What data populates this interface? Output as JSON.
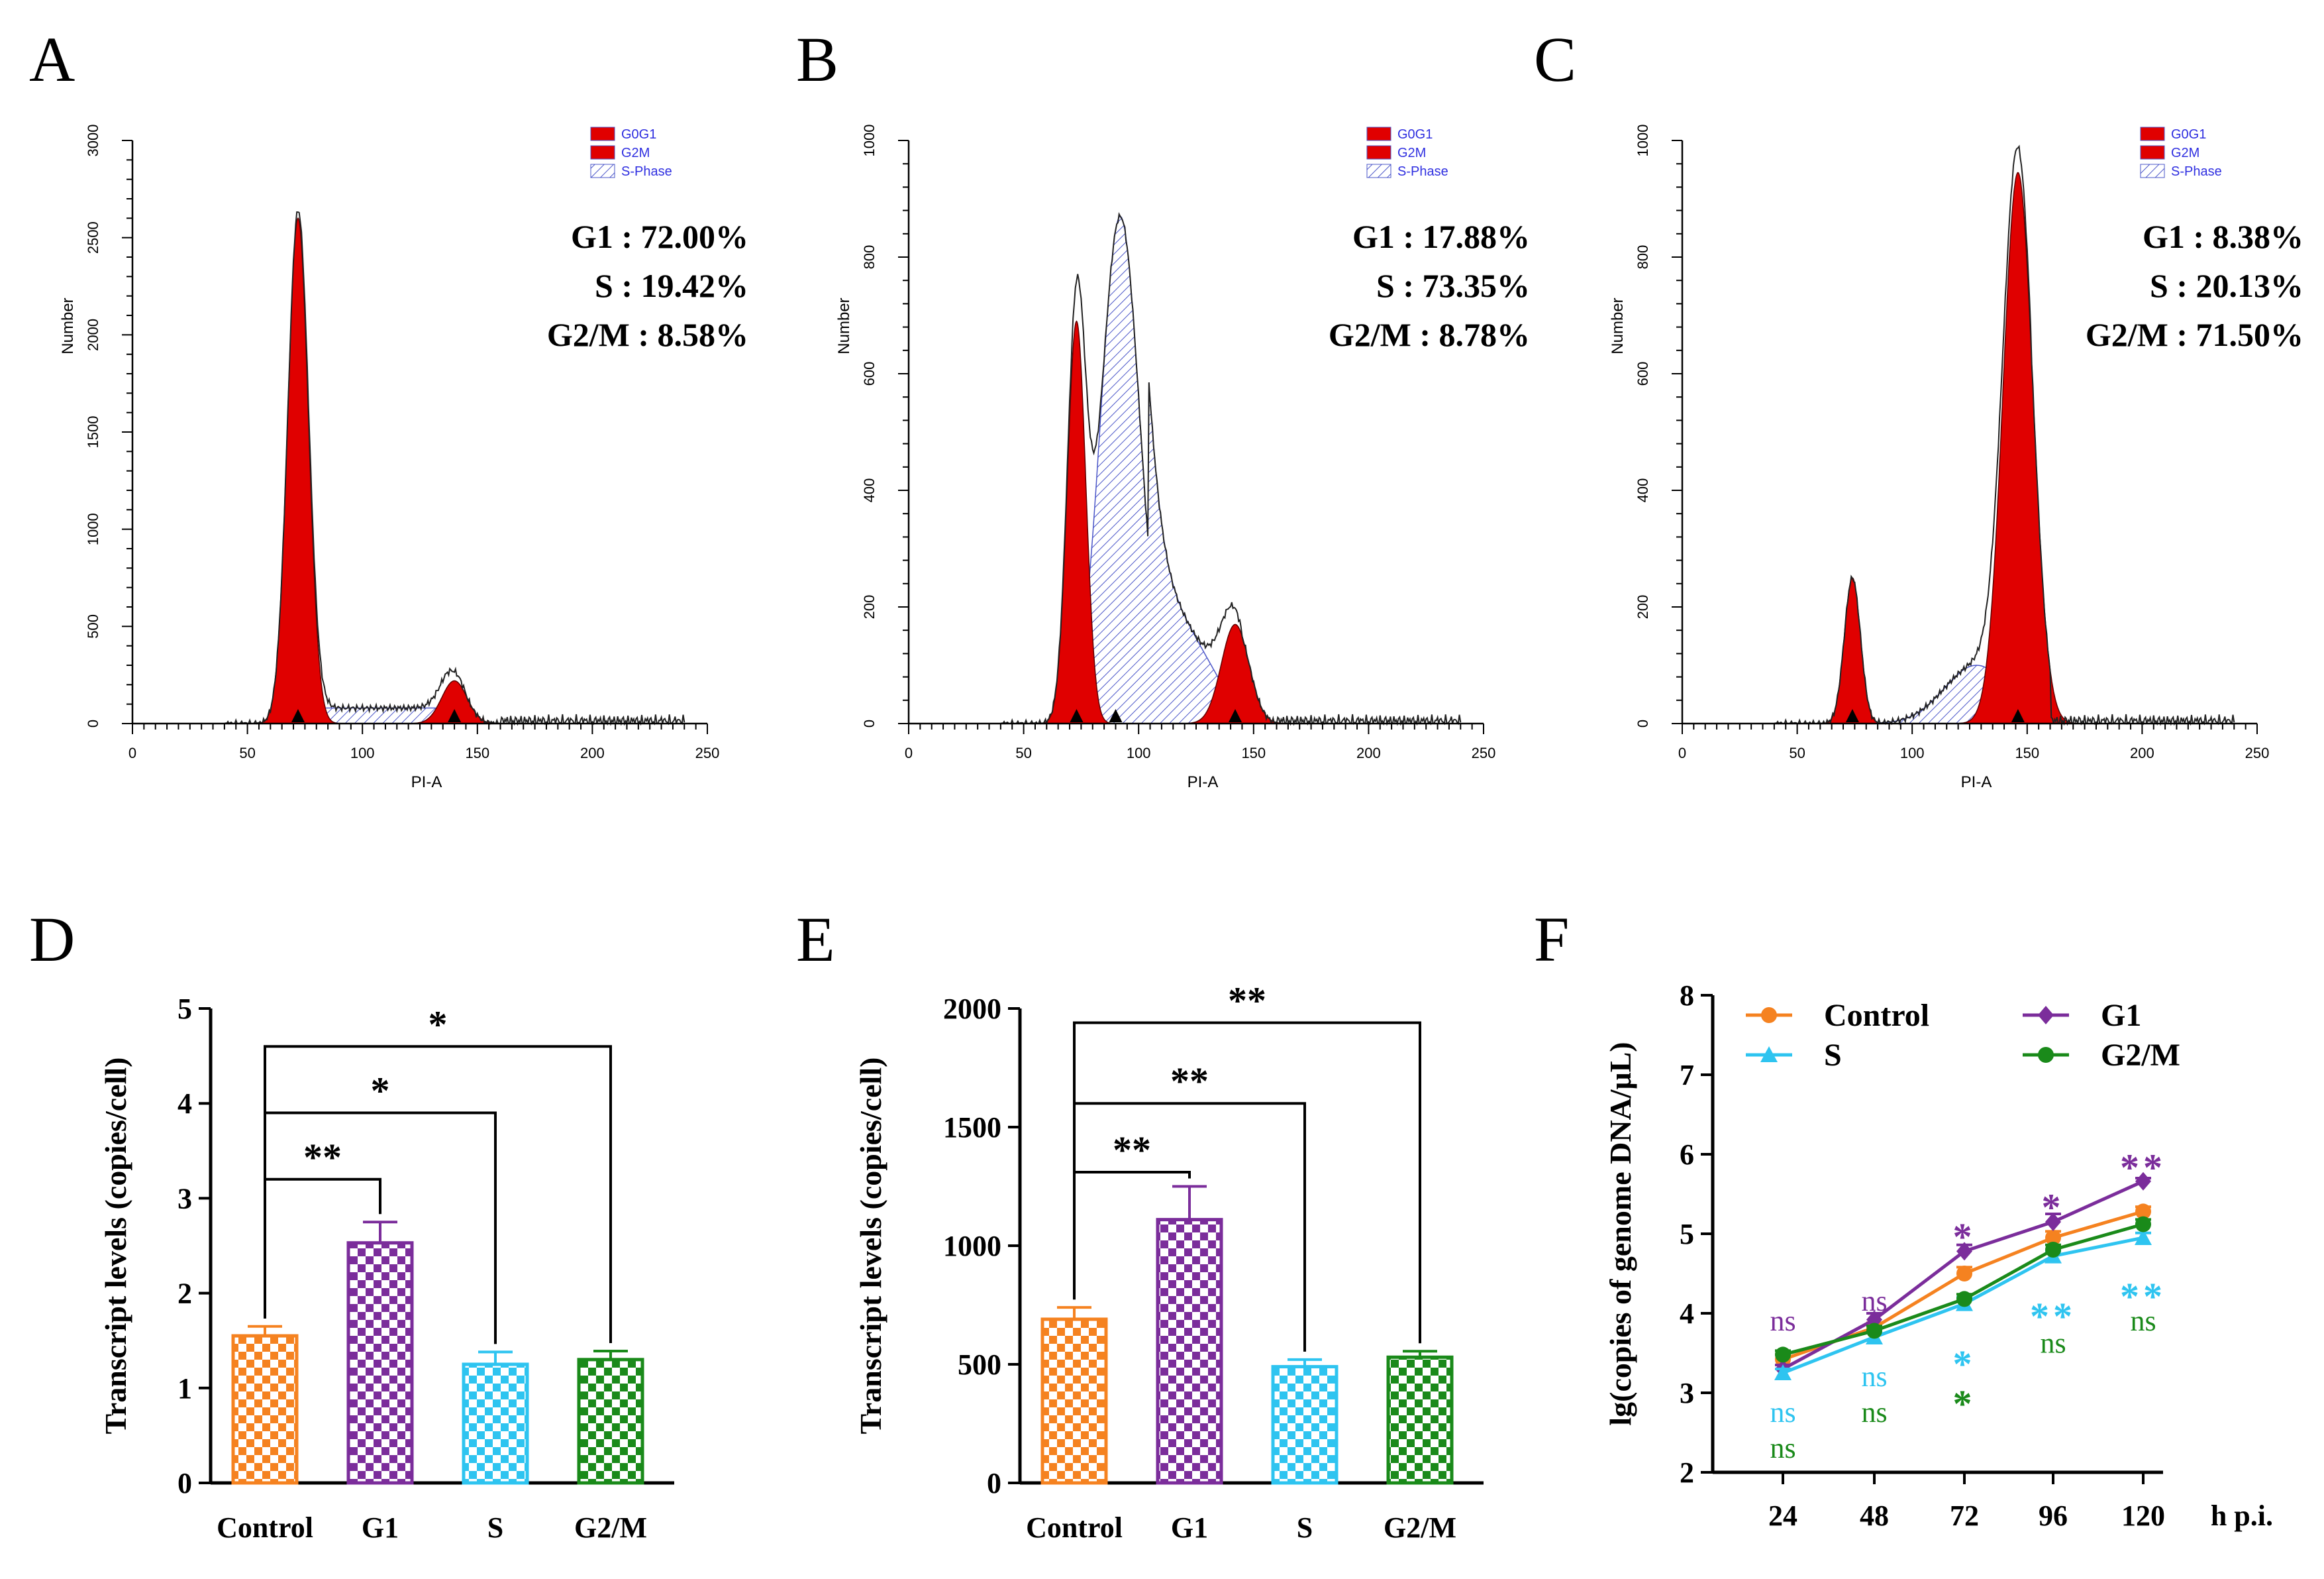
{
  "figure": {
    "panels": [
      "A",
      "B",
      "C",
      "D",
      "E",
      "F"
    ]
  },
  "chart_data": [
    {
      "id": "A",
      "type": "area",
      "title": "",
      "xlabel": "PI-A",
      "ylabel": "Number",
      "xlim": [
        0,
        250
      ],
      "ylim": [
        0,
        3000
      ],
      "xticks": [
        0,
        50,
        100,
        150,
        200,
        250
      ],
      "yticks": [
        0,
        500,
        1000,
        1500,
        2000,
        2500,
        3000
      ],
      "legend": [
        "G0G1",
        "G2M",
        "S-Phase"
      ],
      "peaks": {
        "g1_pos": 72,
        "g1_height": 2600,
        "g1_width": 4.5,
        "g2_pos": 140,
        "g2_height": 220,
        "g2_width": 5.5,
        "s_level": 80
      },
      "stats": [
        "G1 : 72.00%",
        "S : 19.42%",
        "G2/M : 8.58%"
      ]
    },
    {
      "id": "B",
      "type": "area",
      "title": "",
      "xlabel": "PI-A",
      "ylabel": "Number",
      "xlim": [
        0,
        250
      ],
      "ylim": [
        0,
        1000
      ],
      "xticks": [
        0,
        50,
        100,
        150,
        200,
        250
      ],
      "yticks": [
        0,
        200,
        400,
        600,
        800,
        1000
      ],
      "legend": [
        "G0G1",
        "G2M",
        "S-Phase"
      ],
      "peaks": {
        "g1_pos": 73,
        "g1_height": 690,
        "g1_width": 4.0,
        "g2_pos": 142,
        "g2_height": 170,
        "g2_width": 6.0,
        "s_level": 870
      },
      "stats": [
        "G1 : 17.88%",
        "S : 73.35%",
        "G2/M : 8.78%"
      ]
    },
    {
      "id": "C",
      "type": "area",
      "title": "",
      "xlabel": "PI-A",
      "ylabel": "Number",
      "xlim": [
        0,
        250
      ],
      "ylim": [
        0,
        1000
      ],
      "xticks": [
        0,
        50,
        100,
        150,
        200,
        250
      ],
      "yticks": [
        0,
        200,
        400,
        600,
        800,
        1000
      ],
      "legend": [
        "G0G1",
        "G2M",
        "S-Phase"
      ],
      "peaks": {
        "g1_pos": 74,
        "g1_height": 250,
        "g1_width": 3.5,
        "g2_pos": 146,
        "g2_height": 945,
        "g2_width": 6.5,
        "s_level": 100
      },
      "stats": [
        "G1 : 8.38%",
        "S : 20.13%",
        "G2/M : 71.50%"
      ]
    },
    {
      "id": "D",
      "type": "bar",
      "xlabel": "",
      "ylabel": "Transcript levels (copies/cell)",
      "ylim": [
        0,
        5
      ],
      "yticks": [
        0,
        1,
        2,
        3,
        4,
        5
      ],
      "categories": [
        "Control",
        "G1",
        "S",
        "G2/M"
      ],
      "values": [
        1.55,
        2.53,
        1.25,
        1.3
      ],
      "errors": [
        0.1,
        0.22,
        0.13,
        0.09
      ],
      "colors": [
        "#f58220",
        "#7b2d9b",
        "#2ec4f0",
        "#1a8a1a"
      ],
      "significance": [
        {
          "from": 0,
          "to": 1,
          "label": "**",
          "level": 3.2
        },
        {
          "from": 0,
          "to": 2,
          "label": "*",
          "level": 3.9
        },
        {
          "from": 0,
          "to": 3,
          "label": "*",
          "level": 4.6
        }
      ]
    },
    {
      "id": "E",
      "type": "bar",
      "xlabel": "",
      "ylabel": "Transcript levels (copies/cell)",
      "ylim": [
        0,
        2000
      ],
      "yticks": [
        0,
        500,
        1000,
        1500,
        2000
      ],
      "categories": [
        "Control",
        "G1",
        "S",
        "G2/M"
      ],
      "values": [
        690,
        1110,
        490,
        530
      ],
      "errors": [
        50,
        140,
        30,
        25
      ],
      "colors": [
        "#f58220",
        "#7b2d9b",
        "#2ec4f0",
        "#1a8a1a"
      ],
      "significance": [
        {
          "from": 0,
          "to": 1,
          "label": "**",
          "level": 1310
        },
        {
          "from": 0,
          "to": 2,
          "label": "**",
          "level": 1600
        },
        {
          "from": 0,
          "to": 3,
          "label": "**",
          "level": 1940
        }
      ]
    },
    {
      "id": "F",
      "type": "line",
      "xlabel": "h p.i.",
      "ylabel": "lg(copies of genome DNA/μL)",
      "ylim": [
        2,
        8
      ],
      "yticks": [
        2,
        3,
        4,
        5,
        6,
        7,
        8
      ],
      "x": [
        24,
        48,
        72,
        96,
        120
      ],
      "xtick_labels": [
        "24",
        "48",
        "72",
        "96",
        "120"
      ],
      "series": [
        {
          "name": "Control",
          "color": "#f58220",
          "marker": "circle",
          "values": [
            3.42,
            3.82,
            4.5,
            4.95,
            5.28
          ],
          "errors": [
            0.06,
            0.06,
            0.08,
            0.08,
            0.06
          ]
        },
        {
          "name": "G1",
          "color": "#7b2d9b",
          "marker": "diamond",
          "values": [
            3.3,
            3.92,
            4.78,
            5.15,
            5.66
          ],
          "errors": [
            0.05,
            0.08,
            0.08,
            0.1,
            0.04
          ]
        },
        {
          "name": "S",
          "color": "#2ec4f0",
          "marker": "triangle",
          "values": [
            3.25,
            3.7,
            4.12,
            4.72,
            4.95
          ],
          "errors": [
            0.05,
            0.06,
            0.08,
            0.06,
            0.06
          ]
        },
        {
          "name": "G2/M",
          "color": "#1a8a1a",
          "marker": "circle",
          "values": [
            3.48,
            3.78,
            4.18,
            4.8,
            5.12
          ],
          "errors": [
            0.05,
            0.06,
            0.06,
            0.06,
            0.06
          ]
        }
      ],
      "annotations": [
        {
          "x": 24,
          "y": 3.9,
          "text": "ns",
          "color": "#7b2d9b",
          "kind": "ns"
        },
        {
          "x": 24,
          "y": 2.75,
          "text": "ns",
          "color": "#2ec4f0",
          "kind": "ns"
        },
        {
          "x": 24,
          "y": 2.3,
          "text": "ns",
          "color": "#1a8a1a",
          "kind": "ns"
        },
        {
          "x": 48,
          "y": 4.15,
          "text": "ns",
          "color": "#7b2d9b",
          "kind": "ns"
        },
        {
          "x": 48,
          "y": 3.2,
          "text": "ns",
          "color": "#2ec4f0",
          "kind": "ns"
        },
        {
          "x": 48,
          "y": 2.75,
          "text": "ns",
          "color": "#1a8a1a",
          "kind": "ns"
        },
        {
          "x": 72,
          "y": 5.05,
          "text": "*",
          "color": "#7b2d9b",
          "kind": "star"
        },
        {
          "x": 72,
          "y": 3.45,
          "text": "*",
          "color": "#2ec4f0",
          "kind": "star"
        },
        {
          "x": 72,
          "y": 2.95,
          "text": "*",
          "color": "#1a8a1a",
          "kind": "star"
        },
        {
          "x": 96,
          "y": 5.42,
          "text": "*",
          "color": "#7b2d9b",
          "kind": "star"
        },
        {
          "x": 96,
          "y": 4.05,
          "text": "**",
          "color": "#2ec4f0",
          "kind": "star"
        },
        {
          "x": 96,
          "y": 3.62,
          "text": "ns",
          "color": "#1a8a1a",
          "kind": "ns"
        },
        {
          "x": 120,
          "y": 5.92,
          "text": "**",
          "color": "#7b2d9b",
          "kind": "star"
        },
        {
          "x": 120,
          "y": 4.3,
          "text": "**",
          "color": "#2ec4f0",
          "kind": "star"
        },
        {
          "x": 120,
          "y": 3.9,
          "text": "ns",
          "color": "#1a8a1a",
          "kind": "ns"
        }
      ]
    }
  ]
}
